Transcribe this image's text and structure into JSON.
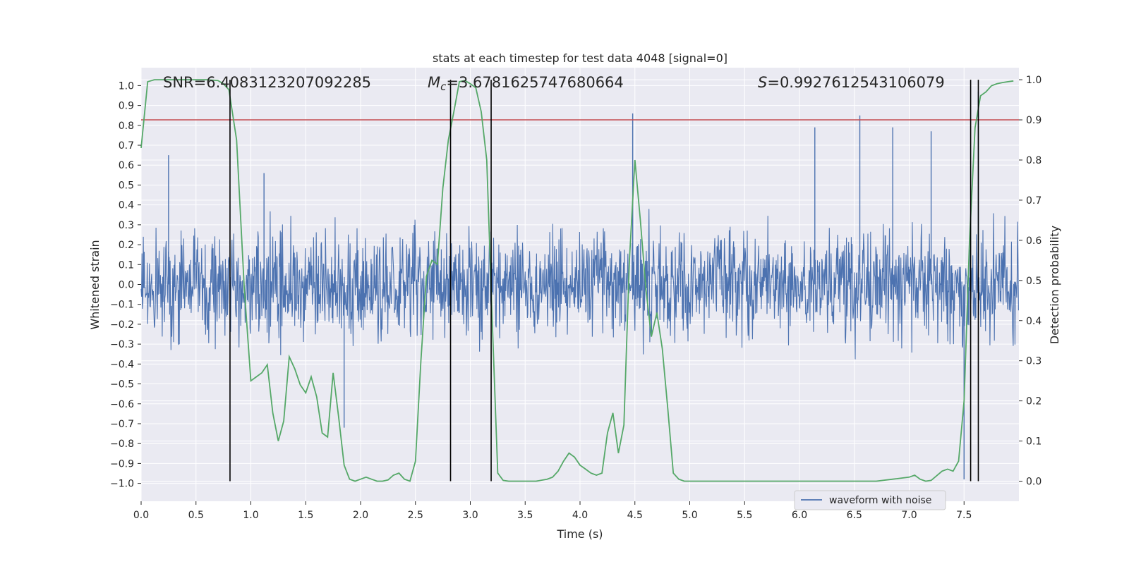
{
  "chart_data": {
    "type": "line",
    "title": "stats at each timestep for test data 4048 [signal=0]",
    "xlabel": "Time (s)",
    "ylabel": "Whitened strain",
    "ylabel_right": "Detection probability",
    "xlim": [
      0.0,
      8.0
    ],
    "ylim": [
      -1.09,
      1.09
    ],
    "ylim_right": [
      -0.05,
      1.03
    ],
    "x_ticks": [
      0.0,
      0.5,
      1.0,
      1.5,
      2.0,
      2.5,
      3.0,
      3.5,
      4.0,
      4.5,
      5.0,
      5.5,
      6.0,
      6.5,
      7.0,
      7.5
    ],
    "x_tick_labels": [
      "0.0",
      "0.5",
      "1.0",
      "1.5",
      "2.0",
      "2.5",
      "3.0",
      "3.5",
      "4.0",
      "4.5",
      "5.0",
      "5.5",
      "6.0",
      "6.5",
      "7.0",
      "7.5"
    ],
    "y_ticks": [
      1.0,
      0.9,
      0.8,
      0.7,
      0.6,
      0.5,
      0.4,
      0.3,
      0.2,
      0.1,
      0.0,
      -0.1,
      -0.2,
      -0.3,
      -0.4,
      -0.5,
      -0.6,
      -0.7,
      -0.8,
      -0.9,
      -1.0
    ],
    "y_tick_labels": [
      "1.0",
      "0.9",
      "0.8",
      "0.7",
      "0.6",
      "0.5",
      "0.4",
      "0.3",
      "0.2",
      "0.1",
      "0.0",
      "−0.1",
      "−0.2",
      "−0.3",
      "−0.4",
      "−0.5",
      "−0.6",
      "−0.7",
      "−0.8",
      "−0.9",
      "−1.0"
    ],
    "y_ticks_right": [
      1.0,
      0.9,
      0.8,
      0.7,
      0.6,
      0.5,
      0.4,
      0.3,
      0.2,
      0.1,
      0.0
    ],
    "y_tick_labels_right": [
      "1.0",
      "0.9",
      "0.8",
      "0.7",
      "0.6",
      "0.5",
      "0.4",
      "0.3",
      "0.2",
      "0.1",
      "0.0"
    ],
    "annotations": {
      "snr": "SNR=6.4083123207092285",
      "mc_symbol": "M",
      "mc_sub": "c",
      "mc_value": "=3.6781625747680664",
      "s_symbol": "S",
      "s_value": "=0.9927612543106079"
    },
    "legend": {
      "label": "waveform with noise",
      "loc": "lower right"
    },
    "threshold_right": 0.9,
    "vertical_lines_x": [
      0.81,
      2.82,
      3.19,
      7.56,
      7.63
    ],
    "detection_probability": {
      "name": "Detection probability",
      "x": [
        0.0,
        0.06,
        0.12,
        0.2,
        0.3,
        0.4,
        0.5,
        0.6,
        0.7,
        0.75,
        0.8,
        0.87,
        0.94,
        1.0,
        1.05,
        1.1,
        1.15,
        1.2,
        1.25,
        1.3,
        1.35,
        1.4,
        1.45,
        1.5,
        1.55,
        1.6,
        1.65,
        1.7,
        1.75,
        1.8,
        1.85,
        1.9,
        1.95,
        2.0,
        2.05,
        2.1,
        2.15,
        2.2,
        2.25,
        2.3,
        2.35,
        2.4,
        2.45,
        2.5,
        2.55,
        2.6,
        2.65,
        2.7,
        2.75,
        2.8,
        2.85,
        2.9,
        2.95,
        3.0,
        3.05,
        3.1,
        3.15,
        3.2,
        3.25,
        3.3,
        3.35,
        3.4,
        3.5,
        3.6,
        3.7,
        3.75,
        3.8,
        3.85,
        3.9,
        3.95,
        4.0,
        4.05,
        4.1,
        4.15,
        4.2,
        4.25,
        4.3,
        4.35,
        4.4,
        4.45,
        4.5,
        4.55,
        4.6,
        4.65,
        4.7,
        4.75,
        4.8,
        4.85,
        4.9,
        4.95,
        5.0,
        5.05,
        5.1,
        5.2,
        5.3,
        5.5,
        5.7,
        5.9,
        6.1,
        6.3,
        6.5,
        6.7,
        6.85,
        7.0,
        7.05,
        7.1,
        7.15,
        7.2,
        7.3,
        7.35,
        7.4,
        7.45,
        7.5,
        7.55,
        7.6,
        7.65,
        7.7,
        7.75,
        7.8,
        7.85,
        7.9,
        7.95
      ],
      "values": [
        0.83,
        0.995,
        1.0,
        1.0,
        1.0,
        1.0,
        1.0,
        1.0,
        0.998,
        0.99,
        0.975,
        0.85,
        0.48,
        0.25,
        0.26,
        0.27,
        0.29,
        0.17,
        0.1,
        0.15,
        0.31,
        0.28,
        0.24,
        0.22,
        0.26,
        0.21,
        0.12,
        0.11,
        0.27,
        0.16,
        0.04,
        0.005,
        0.0,
        0.005,
        0.01,
        0.005,
        0.0,
        0.0,
        0.003,
        0.015,
        0.02,
        0.005,
        0.0,
        0.05,
        0.3,
        0.51,
        0.55,
        0.54,
        0.73,
        0.85,
        0.92,
        0.995,
        0.998,
        0.99,
        0.98,
        0.92,
        0.8,
        0.4,
        0.02,
        0.002,
        0.0,
        0.0,
        0.0,
        0.0,
        0.005,
        0.01,
        0.025,
        0.05,
        0.07,
        0.06,
        0.04,
        0.03,
        0.02,
        0.015,
        0.02,
        0.12,
        0.17,
        0.07,
        0.14,
        0.55,
        0.8,
        0.65,
        0.48,
        0.36,
        0.42,
        0.33,
        0.18,
        0.02,
        0.005,
        0.0,
        0.0,
        0.0,
        0.0,
        0.0,
        0.0,
        0.0,
        0.0,
        0.0,
        0.0,
        0.0,
        0.0,
        0.0,
        0.005,
        0.01,
        0.015,
        0.005,
        0.0,
        0.002,
        0.025,
        0.03,
        0.025,
        0.05,
        0.2,
        0.6,
        0.88,
        0.96,
        0.97,
        0.985,
        0.99,
        0.993,
        0.995,
        0.997
      ]
    },
    "waveform": {
      "name": "waveform with noise",
      "description_of_series": "whitened strain noise, roughly Gaussian around 0 with typical amplitude about ±0.45 and peaks near ±0.9",
      "peak_x": [
        0.25,
        1.12,
        1.85,
        4.48,
        6.14,
        6.55,
        6.85,
        7.2,
        7.5,
        7.63
      ],
      "peak_values": [
        0.65,
        0.56,
        -0.72,
        0.86,
        0.79,
        0.85,
        0.79,
        0.77,
        -0.98,
        0.97
      ]
    },
    "grid": true
  }
}
